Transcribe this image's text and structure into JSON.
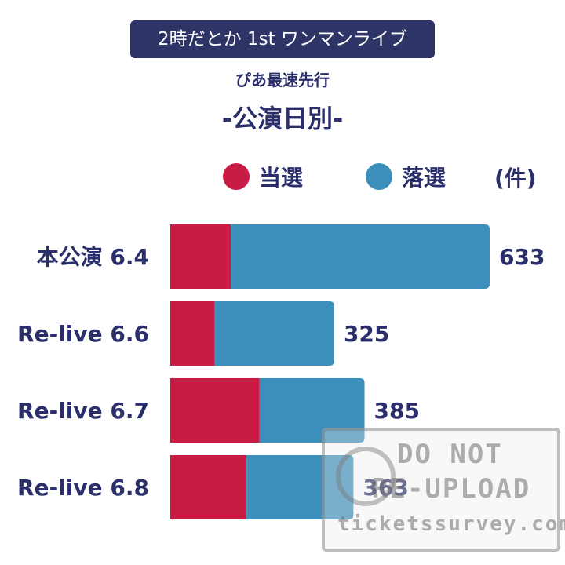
{
  "banner": {
    "text": "2時だとか 1st ワンマンライブ"
  },
  "subtitle": "ぴあ最速先行",
  "heading": "-公演日別-",
  "unit_label": "(件)",
  "colors": {
    "won": "#c81c45",
    "lost": "#3c8fba",
    "banner_bg": "#2e3466",
    "text": "#2a2f6b"
  },
  "chart_data": {
    "type": "bar",
    "orientation": "horizontal",
    "stacked": true,
    "categories": [
      "本公演 6.4",
      "Re-live 6.6",
      "Re-live 6.7",
      "Re-live 6.8"
    ],
    "series": [
      {
        "name": "当選",
        "values": [
          120,
          88,
          177,
          151
        ]
      },
      {
        "name": "落選",
        "values": [
          513,
          237,
          208,
          212
        ]
      }
    ],
    "totals": [
      633,
      325,
      385,
      363
    ],
    "legend_position": "top-right",
    "grid": false,
    "xlim": [
      0,
      633
    ]
  },
  "watermark": {
    "line1": "DO NOT",
    "line2": "RE-UPLOAD",
    "site": "ticketssurvey.com"
  }
}
